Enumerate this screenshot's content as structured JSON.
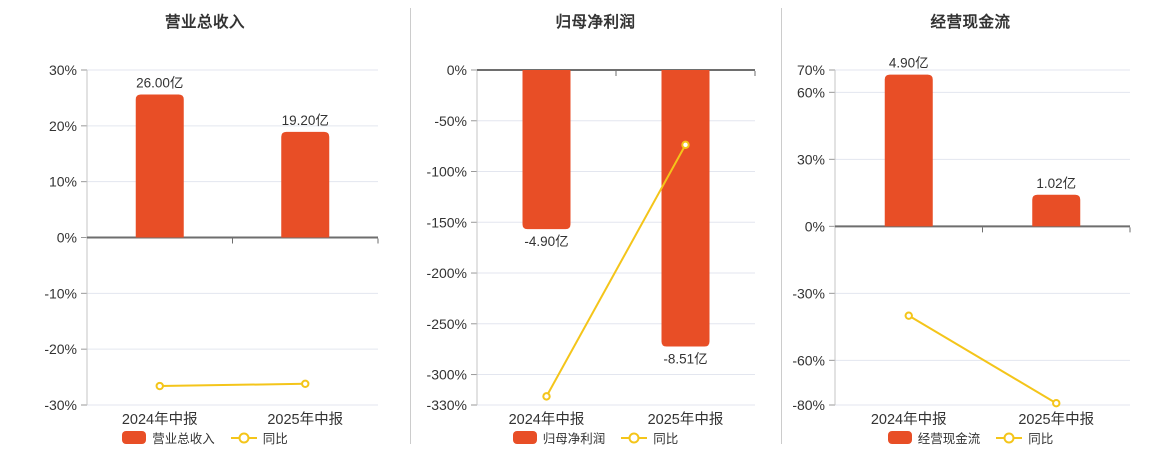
{
  "colors": {
    "bar": "#e84e26",
    "line": "#f4c51a",
    "grid": "#e3e6ef",
    "zero_axis": "#6e6e6e",
    "axis_line": "#c4c4c4",
    "tick": "#999999",
    "text": "#333333",
    "separator": "#cccccc",
    "background": "#ffffff"
  },
  "categories": [
    "2024年中报",
    "2025年中报"
  ],
  "chart_data": [
    {
      "type": "bar",
      "title": "营业总收入",
      "categories": [
        "2024年中报",
        "2025年中报"
      ],
      "bar_series": {
        "name": "营业总收入",
        "unit": "亿",
        "values": [
          26.0,
          19.2
        ],
        "labels": [
          "26.00亿",
          "19.20亿"
        ]
      },
      "line_series": {
        "name": "同比",
        "unit": "%",
        "values": [
          -26.6,
          -26.2
        ]
      },
      "y_axis": {
        "max": 30,
        "min": -30,
        "ticks": [
          30,
          20,
          10,
          0,
          -10,
          -20,
          -30
        ],
        "tick_suffix": "%"
      },
      "grid": true,
      "legend_position": "bottom",
      "bar_pct_per_unit": 0.985
    },
    {
      "type": "bar",
      "title": "归母净利润",
      "categories": [
        "2024年中报",
        "2025年中报"
      ],
      "bar_series": {
        "name": "归母净利润",
        "unit": "亿",
        "values": [
          -4.9,
          -8.51
        ],
        "labels": [
          "-4.90亿",
          "-8.51亿"
        ]
      },
      "line_series": {
        "name": "同比",
        "unit": "%",
        "values": [
          -321.5,
          -73.7
        ]
      },
      "y_axis": {
        "max": 0,
        "min": -330,
        "ticks": [
          0,
          -50,
          -100,
          -150,
          -200,
          -250,
          -300,
          -330
        ],
        "tick_suffix": "%"
      },
      "grid": true,
      "legend_position": "bottom",
      "bar_pct_per_unit": 32.0
    },
    {
      "type": "bar",
      "title": "经营现金流",
      "categories": [
        "2024年中报",
        "2025年中报"
      ],
      "bar_series": {
        "name": "经营现金流",
        "unit": "亿",
        "values": [
          4.9,
          1.02
        ],
        "labels": [
          "4.90亿",
          "1.02亿"
        ]
      },
      "line_series": {
        "name": "同比",
        "unit": "%",
        "values": [
          -40.0,
          -79.2
        ]
      },
      "y_axis": {
        "max": 70,
        "min": -80,
        "ticks": [
          70,
          60,
          30,
          0,
          -30,
          -60,
          -80
        ],
        "tick_suffix": "%"
      },
      "grid": true,
      "legend_position": "bottom",
      "bar_pct_per_unit": 13.86
    }
  ]
}
